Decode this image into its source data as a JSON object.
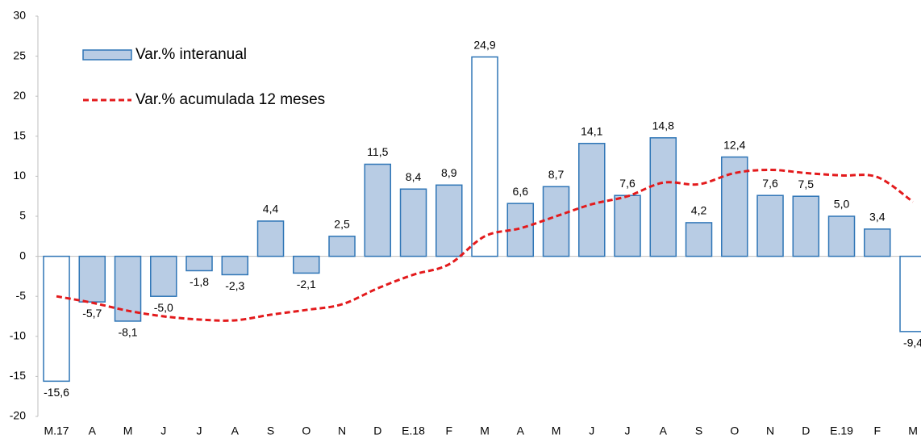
{
  "chart_data": {
    "type": "bar-line",
    "categories": [
      "M.17",
      "A",
      "M",
      "J",
      "J",
      "A",
      "S",
      "O",
      "N",
      "D",
      "E.18",
      "F",
      "M",
      "A",
      "M",
      "J",
      "J",
      "A",
      "S",
      "O",
      "N",
      "D",
      "E.19",
      "F",
      "M"
    ],
    "series": [
      {
        "name": "Var.% interanual",
        "type": "bar",
        "color": "#b8cce4",
        "edge_color": "#2e75b6",
        "colors": [
          "#ffffff",
          "#b8cce4",
          "#b8cce4",
          "#b8cce4",
          "#b8cce4",
          "#b8cce4",
          "#b8cce4",
          "#b8cce4",
          "#b8cce4",
          "#b8cce4",
          "#b8cce4",
          "#b8cce4",
          "#ffffff",
          "#b8cce4",
          "#b8cce4",
          "#b8cce4",
          "#b8cce4",
          "#b8cce4",
          "#b8cce4",
          "#b8cce4",
          "#b8cce4",
          "#b8cce4",
          "#b8cce4",
          "#b8cce4",
          "#ffffff"
        ],
        "values": [
          -15.6,
          -5.7,
          -8.1,
          -5.0,
          -1.8,
          -2.3,
          4.4,
          -2.1,
          2.5,
          11.5,
          8.4,
          8.9,
          24.9,
          6.6,
          8.7,
          14.1,
          7.6,
          14.8,
          4.2,
          12.4,
          7.6,
          7.5,
          5.0,
          3.4,
          -9.4
        ],
        "value_labels": [
          "-15,6",
          "-5,7",
          "-8,1",
          "-5,0",
          "-1,8",
          "-2,3",
          "4,4",
          "-2,1",
          "2,5",
          "11,5",
          "8,4",
          "8,9",
          "24,9",
          "6,6",
          "8,7",
          "14,1",
          "7,6",
          "14,8",
          "4,2",
          "12,4",
          "7,6",
          "7,5",
          "5,0",
          "3,4",
          "-9,4"
        ]
      },
      {
        "name": "Var.% acumulada 12 meses",
        "type": "line",
        "color": "#e31a1c",
        "dashed": true,
        "values": [
          -5.0,
          -5.8,
          -6.8,
          -7.5,
          -7.9,
          -8.0,
          -7.3,
          -6.7,
          -6.0,
          -4.0,
          -2.3,
          -1.0,
          2.5,
          3.5,
          5.0,
          6.5,
          7.5,
          9.2,
          9.0,
          10.4,
          10.8,
          10.4,
          10.1,
          9.9,
          6.8
        ]
      }
    ],
    "ylim": [
      -20,
      30
    ],
    "yticks": [
      -20,
      -15,
      -10,
      -5,
      0,
      5,
      10,
      15,
      20,
      25,
      30
    ],
    "grid": false,
    "legend": "top-left"
  }
}
